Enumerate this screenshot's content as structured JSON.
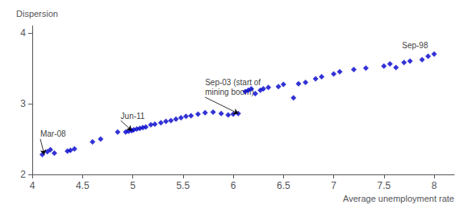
{
  "chart_data": {
    "type": "scatter",
    "x": [
      4.1,
      4.15,
      4.18,
      4.22,
      4.35,
      4.38,
      4.42,
      4.6,
      4.68,
      4.85,
      4.93,
      4.96,
      4.99,
      5.01,
      5.04,
      5.07,
      5.1,
      5.13,
      5.18,
      5.22,
      5.28,
      5.33,
      5.38,
      5.43,
      5.48,
      5.53,
      5.58,
      5.65,
      5.72,
      5.8,
      5.88,
      5.95,
      6.0,
      6.05,
      6.12,
      6.15,
      6.18,
      6.22,
      6.27,
      6.3,
      6.35,
      6.45,
      6.5,
      6.6,
      6.65,
      6.72,
      6.82,
      6.88,
      7.0,
      7.06,
      7.2,
      7.32,
      7.5,
      7.56,
      7.62,
      7.7,
      7.76,
      7.88,
      7.94,
      8.0
    ],
    "values": [
      2.28,
      2.32,
      2.35,
      2.3,
      2.33,
      2.34,
      2.36,
      2.46,
      2.5,
      2.6,
      2.6,
      2.61,
      2.62,
      2.63,
      2.64,
      2.65,
      2.66,
      2.67,
      2.7,
      2.71,
      2.73,
      2.75,
      2.76,
      2.78,
      2.8,
      2.82,
      2.83,
      2.85,
      2.87,
      2.88,
      2.86,
      2.84,
      2.85,
      2.86,
      3.17,
      3.19,
      3.21,
      3.14,
      3.19,
      3.21,
      3.23,
      3.24,
      3.27,
      3.08,
      3.28,
      3.3,
      3.35,
      3.38,
      3.42,
      3.45,
      3.48,
      3.5,
      3.53,
      3.56,
      3.51,
      3.58,
      3.6,
      3.62,
      3.67,
      3.7
    ],
    "color": "#0000CC",
    "marker": "diamond",
    "xlabel": "Average unemployment rate",
    "ylabel": "Dispersion",
    "xlim": [
      4,
      8.2
    ],
    "xticks": [
      4,
      4.5,
      5,
      5.5,
      6,
      6.5,
      7,
      7.5,
      8
    ],
    "ylim": [
      2,
      4.1
    ],
    "yticks": [
      2,
      3,
      4
    ],
    "grid": false,
    "annotations": [
      {
        "label": "Mar-08",
        "x": 4.12,
        "y": 2.28,
        "text_x": 4.08,
        "text_y": 2.5,
        "arrow": true
      },
      {
        "label": "Jun-11",
        "x": 4.99,
        "y": 2.62,
        "text_x": 4.88,
        "text_y": 2.76,
        "arrow": true
      },
      {
        "label": "Sep-03 (start of\nmining boom)",
        "x": 6.05,
        "y": 2.86,
        "text_x": 5.72,
        "text_y": 3.09,
        "arrow": true
      },
      {
        "label": "Sep-98",
        "x": 8.0,
        "y": 3.7,
        "text_x": 7.68,
        "text_y": 3.75,
        "arrow": false
      }
    ]
  }
}
